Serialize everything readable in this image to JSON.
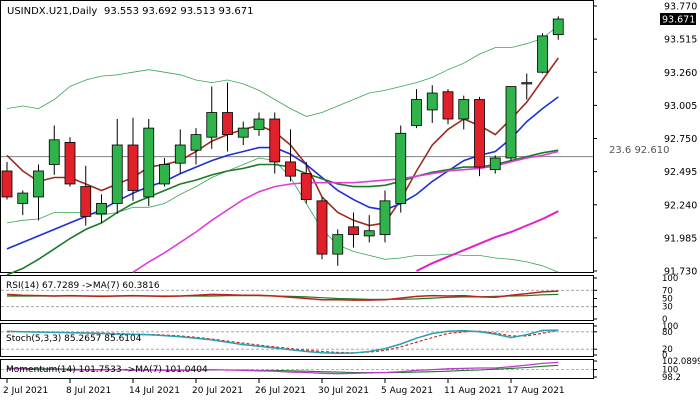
{
  "chart_data": {
    "type": "candlestick",
    "title": "USINDX.U21,Daily",
    "ohlc_header": "93.553 93.692 93.513 93.671",
    "last_price": "93.671",
    "fib_label": "23.6 92.610",
    "fib_level": 92.61,
    "ylim": [
      91.73,
      93.77
    ],
    "price_ticks": [
      "93.770",
      "93.515",
      "93.260",
      "93.005",
      "92.750",
      "92.495",
      "92.240",
      "91.985",
      "91.730"
    ],
    "x_tick_labels": [
      {
        "label": "2 Jul 2021",
        "bar": 0
      },
      {
        "label": "8 Jul 2021",
        "bar": 4
      },
      {
        "label": "14 Jul 2021",
        "bar": 8
      },
      {
        "label": "20 Jul 2021",
        "bar": 12
      },
      {
        "label": "26 Jul 2021",
        "bar": 16
      },
      {
        "label": "30 Jul 2021",
        "bar": 20
      },
      {
        "label": "5 Aug 2021",
        "bar": 24
      },
      {
        "label": "11 Aug 2021",
        "bar": 28
      },
      {
        "label": "17 Aug 2021",
        "bar": 32
      }
    ],
    "candles": [
      {
        "o": 92.5,
        "h": 92.57,
        "l": 92.28,
        "c": 92.3
      },
      {
        "o": 92.25,
        "h": 92.35,
        "l": 92.16,
        "c": 92.33
      },
      {
        "o": 92.3,
        "h": 92.55,
        "l": 92.12,
        "c": 92.5
      },
      {
        "o": 92.55,
        "h": 92.85,
        "l": 92.47,
        "c": 92.74
      },
      {
        "o": 92.72,
        "h": 92.76,
        "l": 92.38,
        "c": 92.4
      },
      {
        "o": 92.38,
        "h": 92.54,
        "l": 92.08,
        "c": 92.15
      },
      {
        "o": 92.17,
        "h": 92.32,
        "l": 92.1,
        "c": 92.25
      },
      {
        "o": 92.25,
        "h": 92.9,
        "l": 92.17,
        "c": 92.7
      },
      {
        "o": 92.7,
        "h": 92.91,
        "l": 92.27,
        "c": 92.35
      },
      {
        "o": 92.3,
        "h": 92.9,
        "l": 92.23,
        "c": 92.83
      },
      {
        "o": 92.4,
        "h": 92.6,
        "l": 92.38,
        "c": 92.55
      },
      {
        "o": 92.56,
        "h": 92.82,
        "l": 92.48,
        "c": 92.7
      },
      {
        "o": 92.66,
        "h": 92.83,
        "l": 92.55,
        "c": 92.78
      },
      {
        "o": 92.76,
        "h": 93.15,
        "l": 92.67,
        "c": 92.95
      },
      {
        "o": 92.95,
        "h": 93.18,
        "l": 92.65,
        "c": 92.78
      },
      {
        "o": 92.76,
        "h": 92.88,
        "l": 92.7,
        "c": 92.83
      },
      {
        "o": 92.82,
        "h": 92.95,
        "l": 92.77,
        "c": 92.9
      },
      {
        "o": 92.9,
        "h": 92.95,
        "l": 92.48,
        "c": 92.57
      },
      {
        "o": 92.57,
        "h": 92.82,
        "l": 92.42,
        "c": 92.46
      },
      {
        "o": 92.48,
        "h": 92.57,
        "l": 92.25,
        "c": 92.28
      },
      {
        "o": 92.27,
        "h": 92.3,
        "l": 91.82,
        "c": 91.86
      },
      {
        "o": 91.86,
        "h": 92.05,
        "l": 91.77,
        "c": 92.01
      },
      {
        "o": 92.07,
        "h": 92.18,
        "l": 91.91,
        "c": 92.01
      },
      {
        "o": 92.0,
        "h": 92.16,
        "l": 91.95,
        "c": 92.04
      },
      {
        "o": 92.01,
        "h": 92.35,
        "l": 91.95,
        "c": 92.27
      },
      {
        "o": 92.25,
        "h": 92.85,
        "l": 92.18,
        "c": 92.79
      },
      {
        "o": 92.85,
        "h": 93.13,
        "l": 92.83,
        "c": 93.05
      },
      {
        "o": 92.97,
        "h": 93.16,
        "l": 92.87,
        "c": 93.1
      },
      {
        "o": 93.11,
        "h": 93.13,
        "l": 92.86,
        "c": 92.9
      },
      {
        "o": 92.9,
        "h": 93.08,
        "l": 92.82,
        "c": 93.05
      },
      {
        "o": 93.05,
        "h": 93.07,
        "l": 92.46,
        "c": 92.53
      },
      {
        "o": 92.51,
        "h": 92.62,
        "l": 92.48,
        "c": 92.6
      },
      {
        "o": 92.6,
        "h": 93.15,
        "l": 92.58,
        "c": 93.15
      },
      {
        "o": 93.17,
        "h": 93.25,
        "l": 93.05,
        "c": 93.18
      },
      {
        "o": 93.26,
        "h": 93.56,
        "l": 93.25,
        "c": 93.54
      },
      {
        "o": 93.55,
        "h": 93.69,
        "l": 93.51,
        "c": 93.67
      }
    ],
    "overlays": [
      {
        "name": "upper band",
        "color": "#3aa655",
        "values": [
          92.98,
          93.0,
          92.98,
          93.05,
          93.15,
          93.2,
          93.23,
          93.24,
          93.26,
          93.28,
          93.26,
          93.24,
          93.2,
          93.18,
          93.2,
          93.17,
          93.12,
          93.05,
          92.98,
          92.92,
          92.95,
          93.0,
          93.05,
          93.1,
          93.12,
          93.15,
          93.18,
          93.22,
          93.28,
          93.33,
          93.4,
          93.45,
          93.45,
          93.48,
          93.52,
          93.62
        ]
      },
      {
        "name": "lower band",
        "color": "#3aa655",
        "values": [
          92.1,
          92.12,
          92.13,
          92.18,
          92.18,
          92.18,
          92.16,
          92.18,
          92.22,
          92.22,
          92.25,
          92.32,
          92.38,
          92.45,
          92.5,
          92.55,
          92.6,
          92.58,
          92.45,
          92.25,
          92.05,
          91.93,
          91.88,
          91.85,
          91.82,
          91.83,
          91.85,
          91.85,
          91.86,
          91.85,
          91.85,
          91.83,
          91.82,
          91.8,
          91.77,
          91.72
        ]
      },
      {
        "name": "MA brown",
        "color": "#9b2d1f",
        "values": [
          92.62,
          92.5,
          92.42,
          92.45,
          92.45,
          92.4,
          92.35,
          92.4,
          92.45,
          92.53,
          92.55,
          92.58,
          92.65,
          92.73,
          92.78,
          92.82,
          92.85,
          92.8,
          92.7,
          92.55,
          92.3,
          92.18,
          92.12,
          92.08,
          92.1,
          92.28,
          92.5,
          92.7,
          92.82,
          92.9,
          92.85,
          92.78,
          92.9,
          93.03,
          93.2,
          93.37
        ]
      },
      {
        "name": "MA blue",
        "color": "#1f2fd6",
        "values": [
          91.9,
          91.95,
          92.0,
          92.05,
          92.1,
          92.15,
          92.2,
          92.27,
          92.33,
          92.38,
          92.42,
          92.48,
          92.53,
          92.58,
          92.62,
          92.65,
          92.68,
          92.68,
          92.63,
          92.55,
          92.45,
          92.35,
          92.28,
          92.22,
          92.2,
          92.25,
          92.32,
          92.42,
          92.5,
          92.58,
          92.62,
          92.65,
          92.75,
          92.88,
          92.98,
          93.07
        ]
      },
      {
        "name": "MA green",
        "color": "#1a7a2a",
        "values": [
          91.7,
          91.75,
          91.82,
          91.9,
          91.98,
          92.05,
          92.1,
          92.18,
          92.25,
          92.3,
          92.35,
          92.4,
          92.43,
          92.47,
          92.5,
          92.52,
          92.55,
          92.55,
          92.53,
          92.48,
          92.44,
          92.4,
          92.38,
          92.38,
          92.39,
          92.42,
          92.46,
          92.49,
          92.51,
          92.53,
          92.53,
          92.55,
          92.58,
          92.61,
          92.64,
          92.66
        ]
      },
      {
        "name": "MA magenta",
        "color": "#e03fd6",
        "values": [
          null,
          null,
          null,
          null,
          null,
          null,
          null,
          null,
          91.72,
          91.8,
          91.87,
          91.95,
          92.03,
          92.12,
          92.2,
          92.28,
          92.34,
          92.38,
          92.4,
          92.41,
          92.41,
          92.41,
          92.41,
          92.42,
          92.43,
          92.44,
          92.46,
          92.48,
          92.5,
          92.51,
          92.52,
          92.54,
          92.57,
          92.6,
          92.62,
          92.65
        ]
      },
      {
        "name": "MA long magenta",
        "color": "#e020c8",
        "values": [
          null,
          null,
          null,
          null,
          null,
          null,
          null,
          null,
          null,
          null,
          null,
          null,
          null,
          null,
          null,
          null,
          null,
          null,
          null,
          null,
          null,
          null,
          null,
          null,
          null,
          null,
          91.73,
          91.79,
          91.84,
          91.89,
          91.94,
          91.99,
          92.03,
          92.08,
          92.13,
          92.19
        ]
      }
    ],
    "rsi": {
      "label": "RSI(14) 67.7289 ->MA(7) 60.3816",
      "ticks": [
        "100",
        "70",
        "50",
        "30",
        "0"
      ],
      "rsi_values": [
        60,
        58,
        57,
        56,
        57,
        56,
        55,
        56,
        57,
        56,
        55,
        56,
        58,
        60,
        59,
        58,
        58,
        56,
        53,
        50,
        47,
        47,
        46,
        46,
        47,
        51,
        55,
        57,
        56,
        57,
        54,
        53,
        58,
        62,
        66,
        68
      ],
      "ma_values": [
        56,
        56,
        56,
        56,
        56,
        56,
        56,
        56,
        56,
        56,
        56,
        56,
        56,
        56,
        57,
        57,
        57,
        56,
        55,
        54,
        52,
        50,
        49,
        48,
        48,
        48,
        49,
        51,
        53,
        54,
        54,
        55,
        56,
        57,
        59,
        60
      ]
    },
    "stoch": {
      "label": "Stoch(5,3,3) 85.2657 85.6104",
      "ticks": [
        "100",
        "80",
        "20",
        "0"
      ],
      "k_values": [
        82,
        80,
        79,
        78,
        77,
        76,
        74,
        72,
        71,
        70,
        67,
        63,
        58,
        52,
        44,
        36,
        30,
        24,
        18,
        12,
        8,
        6,
        7,
        12,
        22,
        38,
        58,
        74,
        82,
        84,
        80,
        72,
        60,
        70,
        85,
        86
      ],
      "d_values": [
        80,
        80,
        80,
        79,
        78,
        77,
        76,
        74,
        72,
        71,
        69,
        66,
        61,
        55,
        48,
        41,
        34,
        28,
        22,
        17,
        12,
        9,
        8,
        10,
        16,
        28,
        44,
        60,
        74,
        80,
        82,
        76,
        66,
        66,
        75,
        85
      ]
    },
    "momentum": {
      "label": "Momentum(14) 101.7533 ->MA(7) 101.0404",
      "ticks": [
        "102.0899",
        "100",
        "98.2"
      ],
      "mom_values": [
        100.4,
        100.2,
        100.0,
        100.1,
        99.9,
        99.9,
        99.9,
        100.0,
        99.8,
        99.9,
        99.8,
        99.8,
        99.9,
        100.0,
        99.9,
        99.8,
        99.7,
        99.6,
        99.4,
        99.3,
        99.1,
        99.0,
        99.1,
        99.2,
        99.3,
        99.5,
        99.8,
        100.0,
        100.2,
        100.3,
        100.4,
        100.4,
        100.7,
        101.1,
        101.5,
        101.75
      ],
      "ma_values": [
        100.3,
        100.3,
        100.2,
        100.2,
        100.1,
        100.0,
        100.0,
        100.0,
        99.9,
        99.9,
        99.9,
        99.9,
        99.9,
        99.9,
        99.9,
        99.9,
        99.8,
        99.8,
        99.7,
        99.6,
        99.5,
        99.4,
        99.3,
        99.3,
        99.3,
        99.3,
        99.4,
        99.5,
        99.6,
        99.8,
        99.9,
        100.1,
        100.3,
        100.5,
        100.8,
        101.04
      ]
    },
    "grid": false,
    "legend": "none"
  }
}
